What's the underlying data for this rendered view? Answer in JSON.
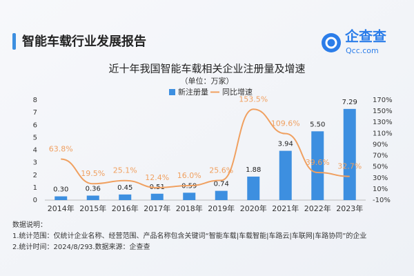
{
  "header": {
    "title": "智能车载行业发展报告",
    "logo_text": "企查查",
    "logo_sub": "Qcc.com"
  },
  "chart_data": {
    "type": "bar-line",
    "title": "近十年我国智能车载相关企业注册量及增速",
    "subtitle": "（单位：万家）",
    "categories": [
      "2014年",
      "2015年",
      "2016年",
      "2017年",
      "2018年",
      "2019年",
      "2020年",
      "2021年",
      "2022年",
      "2023年"
    ],
    "series": [
      {
        "name": "新注册量",
        "color": "#3d8fe0",
        "type": "bar",
        "values": [
          0.3,
          0.36,
          0.45,
          0.51,
          0.59,
          0.74,
          1.88,
          3.94,
          5.5,
          7.29
        ],
        "value_labels": [
          "0.30",
          "0.36",
          "0.45",
          "0.51",
          "0.59",
          "0.74",
          "1.88",
          "3.94",
          "5.50",
          "7.29"
        ]
      },
      {
        "name": "同比增速",
        "color": "#f0a060",
        "type": "line",
        "axis": "y2",
        "values": [
          63.8,
          19.5,
          25.1,
          12.4,
          16.0,
          25.6,
          153.5,
          109.6,
          39.6,
          32.7
        ],
        "value_labels": [
          "63.8%",
          "19.5%",
          "25.1%",
          "12.4%",
          "16.0%",
          "25.6%",
          "153.5%",
          "109.6%",
          "39.6%",
          "32.7%"
        ]
      }
    ],
    "ylim": [
      0,
      8
    ],
    "yticks": [
      0,
      1,
      2,
      3,
      4,
      5,
      6,
      7,
      8
    ],
    "y2lim": [
      -10,
      170
    ],
    "y2ticks": [
      {
        "value": -10,
        "label": "-10%"
      },
      {
        "value": 10,
        "label": "10%"
      },
      {
        "value": 30,
        "label": "30%"
      },
      {
        "value": 50,
        "label": "50%"
      },
      {
        "value": 70,
        "label": "70%"
      },
      {
        "value": 90,
        "label": "90%"
      },
      {
        "value": 110,
        "label": "110%"
      },
      {
        "value": 130,
        "label": "130%"
      },
      {
        "value": 150,
        "label": "150%"
      },
      {
        "value": 170,
        "label": "170%"
      }
    ],
    "grid": false
  },
  "notes": {
    "heading": "数据说明：",
    "items": [
      "1.统计范围：仅统计企业名称、经营范围、产品名称包含关键词“智能车载|车载智能|车路云|车联网|车路协同”的企业",
      "2.统计时间：2024/8/29",
      "3.数据来源：企查查"
    ]
  }
}
